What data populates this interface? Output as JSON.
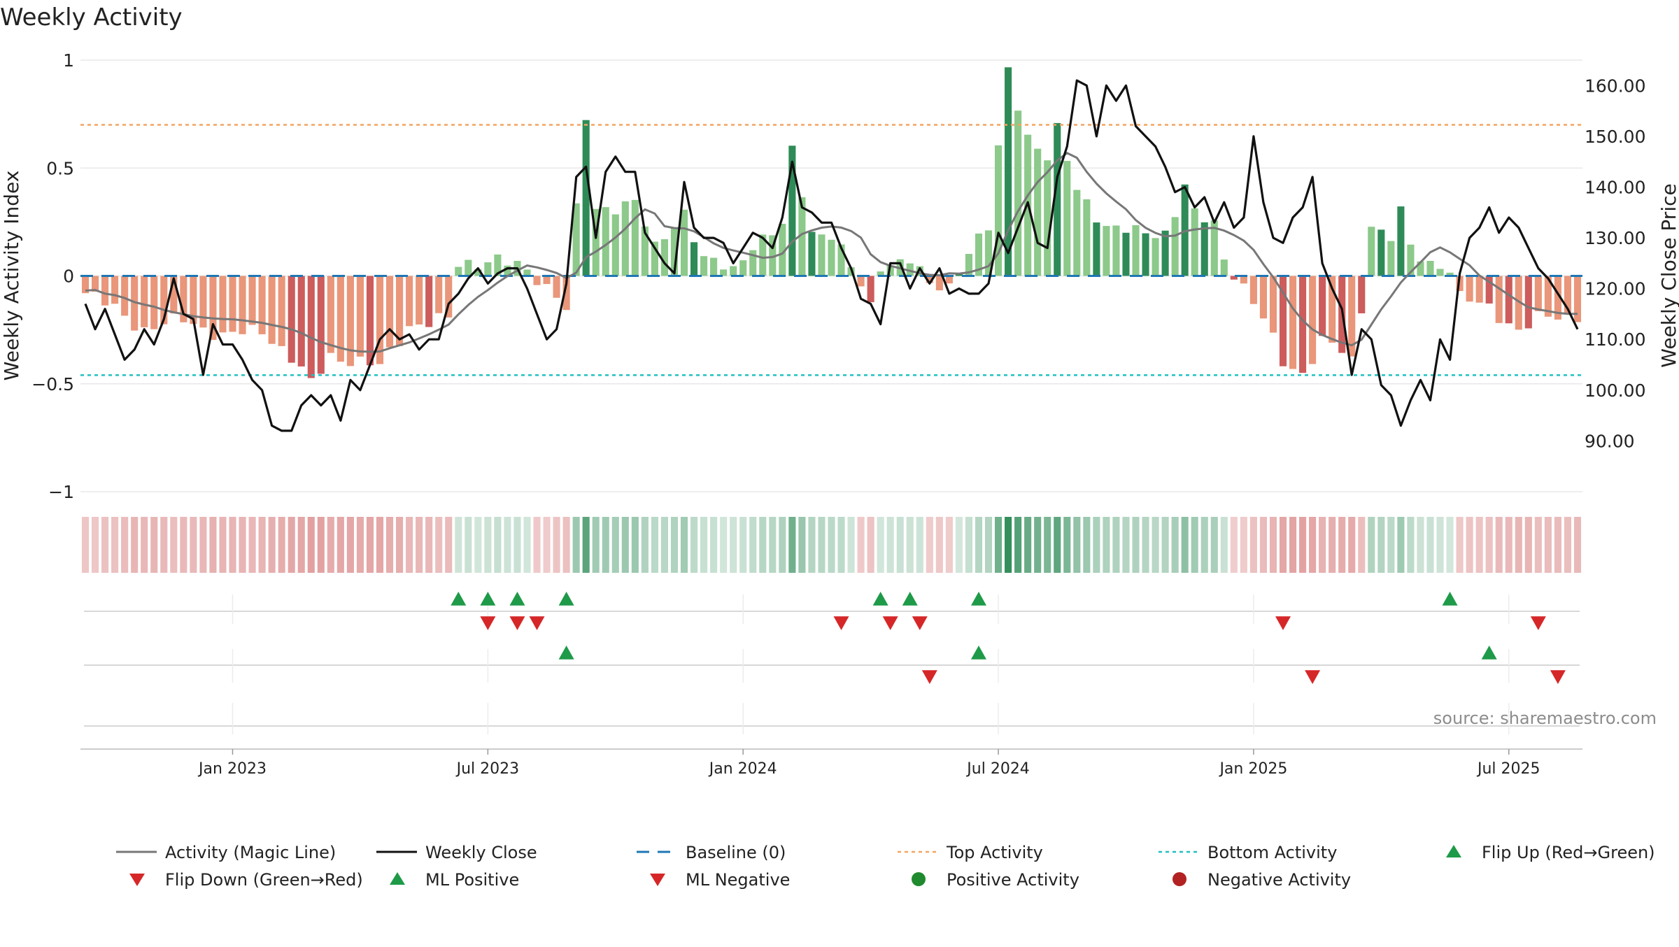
{
  "chart_data": {
    "type": "bar",
    "title": "Weekly Activity",
    "source": "source: sharemaestro.com",
    "ylabel": "Weekly Activity Index",
    "y2label": "Weekly Close Price",
    "ylim": [
      -1,
      1
    ],
    "y2lim": [
      80,
      165
    ],
    "yticks": [
      {
        "value": 1,
        "label": "1"
      },
      {
        "value": 0.5,
        "label": "0.5"
      },
      {
        "value": 0,
        "label": "0"
      },
      {
        "value": -0.5,
        "label": "−0.5"
      },
      {
        "value": -1,
        "label": "−1"
      }
    ],
    "y2ticks": [
      {
        "value": 160,
        "label": "160.00"
      },
      {
        "value": 150,
        "label": "150.00"
      },
      {
        "value": 140,
        "label": "140.00"
      },
      {
        "value": 130,
        "label": "130.00"
      },
      {
        "value": 120,
        "label": "120.00"
      },
      {
        "value": 110,
        "label": "110.00"
      },
      {
        "value": 100,
        "label": "100.00"
      },
      {
        "value": 90,
        "label": "90.00"
      }
    ],
    "x_weeks": 153,
    "xticks": [
      {
        "week": 15,
        "label": "Jan 2023"
      },
      {
        "week": 41,
        "label": "Jul 2023"
      },
      {
        "week": 67,
        "label": "Jan 2024"
      },
      {
        "week": 93,
        "label": "Jul 2024"
      },
      {
        "week": 119,
        "label": "Jan 2025"
      },
      {
        "week": 145,
        "label": "Jul 2025"
      }
    ],
    "top_activity": 0.7,
    "bottom_activity": -0.46,
    "baseline": 0,
    "colors": {
      "pos_dark": "#2e8b57",
      "pos_light": "#8cc98a",
      "neg_dark": "#cd5c5c",
      "neg_light": "#e9967a",
      "magic_line": "#777777",
      "close_line": "#111111",
      "baseline": "#1f77b4",
      "top": "#f4a460",
      "bottom": "#20c0c0",
      "flip_up": "#1e9a48",
      "flip_down": "#d62728"
    },
    "anchors": {
      "activity": [
        [
          0,
          -0.08
        ],
        [
          3,
          -0.15
        ],
        [
          6,
          -0.25
        ],
        [
          10,
          -0.2
        ],
        [
          14,
          -0.28
        ],
        [
          18,
          -0.25
        ],
        [
          21,
          -0.38
        ],
        [
          23,
          -0.5
        ],
        [
          25,
          -0.37
        ],
        [
          30,
          -0.42
        ],
        [
          33,
          -0.23
        ],
        [
          37,
          -0.2
        ],
        [
          38,
          0.05
        ],
        [
          42,
          0.08
        ],
        [
          45,
          0.02
        ],
        [
          48,
          -0.08
        ],
        [
          49,
          -0.15
        ],
        [
          50,
          0.3
        ],
        [
          51,
          0.73
        ],
        [
          52,
          0.3
        ],
        [
          56,
          0.35
        ],
        [
          58,
          0.12
        ],
        [
          61,
          0.3
        ],
        [
          63,
          0.08
        ],
        [
          66,
          0.02
        ],
        [
          68,
          0.15
        ],
        [
          71,
          0.23
        ],
        [
          72,
          0.57
        ],
        [
          74,
          0.2
        ],
        [
          76,
          0.2
        ],
        [
          77,
          0.12
        ],
        [
          79,
          -0.05
        ],
        [
          80,
          -0.15
        ],
        [
          81,
          0.05
        ],
        [
          84,
          0.08
        ],
        [
          86,
          -0.05
        ],
        [
          88,
          -0.05
        ],
        [
          90,
          0.12
        ],
        [
          92,
          0.22
        ],
        [
          94,
          0.95
        ],
        [
          96,
          0.65
        ],
        [
          98,
          0.55
        ],
        [
          99,
          0.67
        ],
        [
          101,
          0.4
        ],
        [
          104,
          0.23
        ],
        [
          107,
          0.2
        ],
        [
          110,
          0.2
        ],
        [
          111,
          0.3
        ],
        [
          112,
          0.42
        ],
        [
          113,
          0.28
        ],
        [
          115,
          0.24
        ],
        [
          116,
          0.08
        ],
        [
          117,
          0.02
        ],
        [
          118,
          -0.05
        ],
        [
          120,
          -0.2
        ],
        [
          122,
          -0.4
        ],
        [
          124,
          -0.45
        ],
        [
          126,
          -0.3
        ],
        [
          128,
          -0.35
        ],
        [
          129,
          -0.4
        ],
        [
          130,
          -0.15
        ],
        [
          131,
          0.25
        ],
        [
          132,
          0.2
        ],
        [
          133,
          0.18
        ],
        [
          134,
          0.3
        ],
        [
          135,
          0.12
        ],
        [
          137,
          0.06
        ],
        [
          139,
          0.04
        ],
        [
          140,
          -0.1
        ],
        [
          143,
          -0.15
        ],
        [
          146,
          -0.25
        ],
        [
          148,
          -0.2
        ],
        [
          152,
          -0.18
        ]
      ]
    },
    "dark_weeks": [
      21,
      22,
      23,
      24,
      29,
      35,
      51,
      62,
      72,
      74,
      80,
      89,
      94,
      99,
      103,
      106,
      108,
      110,
      112,
      114,
      117,
      122,
      124,
      126,
      128,
      130,
      132,
      134,
      143,
      145,
      147
    ],
    "close": [
      [
        0,
        117
      ],
      [
        1,
        112
      ],
      [
        2,
        116
      ],
      [
        3,
        111
      ],
      [
        4,
        106
      ],
      [
        5,
        108
      ],
      [
        6,
        112
      ],
      [
        7,
        109
      ],
      [
        8,
        114
      ],
      [
        9,
        122
      ],
      [
        10,
        115
      ],
      [
        11,
        114
      ],
      [
        12,
        103
      ],
      [
        13,
        113
      ],
      [
        14,
        109
      ],
      [
        15,
        109
      ],
      [
        16,
        106
      ],
      [
        17,
        102
      ],
      [
        18,
        100
      ],
      [
        19,
        93
      ],
      [
        20,
        92
      ],
      [
        21,
        92
      ],
      [
        22,
        97
      ],
      [
        23,
        99
      ],
      [
        24,
        97
      ],
      [
        25,
        99
      ],
      [
        26,
        94
      ],
      [
        27,
        102
      ],
      [
        28,
        100
      ],
      [
        29,
        105
      ],
      [
        30,
        110
      ],
      [
        31,
        112
      ],
      [
        32,
        110
      ],
      [
        33,
        111
      ],
      [
        34,
        108
      ],
      [
        35,
        110
      ],
      [
        36,
        110
      ],
      [
        37,
        117
      ],
      [
        38,
        119
      ],
      [
        39,
        122
      ],
      [
        40,
        124
      ],
      [
        41,
        121
      ],
      [
        42,
        123
      ],
      [
        43,
        124
      ],
      [
        44,
        124
      ],
      [
        45,
        120
      ],
      [
        46,
        115
      ],
      [
        47,
        110
      ],
      [
        48,
        112
      ],
      [
        49,
        121
      ],
      [
        50,
        142
      ],
      [
        51,
        144
      ],
      [
        52,
        130
      ],
      [
        53,
        143
      ],
      [
        54,
        146
      ],
      [
        55,
        143
      ],
      [
        56,
        143
      ],
      [
        57,
        131
      ],
      [
        58,
        128
      ],
      [
        59,
        125
      ],
      [
        60,
        123
      ],
      [
        61,
        141
      ],
      [
        62,
        132
      ],
      [
        63,
        130
      ],
      [
        64,
        130
      ],
      [
        65,
        129
      ],
      [
        66,
        125
      ],
      [
        67,
        128
      ],
      [
        68,
        131
      ],
      [
        69,
        130
      ],
      [
        70,
        128
      ],
      [
        71,
        134
      ],
      [
        72,
        145
      ],
      [
        73,
        136
      ],
      [
        74,
        135
      ],
      [
        75,
        133
      ],
      [
        76,
        133
      ],
      [
        77,
        128
      ],
      [
        78,
        124
      ],
      [
        79,
        118
      ],
      [
        80,
        117
      ],
      [
        81,
        113
      ],
      [
        82,
        125
      ],
      [
        83,
        125
      ],
      [
        84,
        120
      ],
      [
        85,
        124
      ],
      [
        86,
        121
      ],
      [
        87,
        124
      ],
      [
        88,
        119
      ],
      [
        89,
        120
      ],
      [
        90,
        119
      ],
      [
        91,
        119
      ],
      [
        92,
        121
      ],
      [
        93,
        131
      ],
      [
        94,
        127
      ],
      [
        95,
        132
      ],
      [
        96,
        137
      ],
      [
        97,
        129
      ],
      [
        98,
        128
      ],
      [
        99,
        142
      ],
      [
        100,
        148
      ],
      [
        101,
        161
      ],
      [
        102,
        160
      ],
      [
        103,
        150
      ],
      [
        104,
        160
      ],
      [
        105,
        157
      ],
      [
        106,
        160
      ],
      [
        107,
        152
      ],
      [
        108,
        150
      ],
      [
        109,
        148
      ],
      [
        110,
        144
      ],
      [
        111,
        139
      ],
      [
        112,
        140
      ],
      [
        113,
        136
      ],
      [
        114,
        138
      ],
      [
        115,
        133
      ],
      [
        116,
        137
      ],
      [
        117,
        132
      ],
      [
        118,
        134
      ],
      [
        119,
        150
      ],
      [
        120,
        137
      ],
      [
        121,
        130
      ],
      [
        122,
        129
      ],
      [
        123,
        134
      ],
      [
        124,
        136
      ],
      [
        125,
        142
      ],
      [
        126,
        125
      ],
      [
        127,
        120
      ],
      [
        128,
        116
      ],
      [
        129,
        103
      ],
      [
        130,
        112
      ],
      [
        131,
        110
      ],
      [
        132,
        101
      ],
      [
        133,
        99
      ],
      [
        134,
        93
      ],
      [
        135,
        98
      ],
      [
        136,
        102
      ],
      [
        137,
        98
      ],
      [
        138,
        110
      ],
      [
        139,
        106
      ],
      [
        140,
        123
      ],
      [
        141,
        130
      ],
      [
        142,
        132
      ],
      [
        143,
        136
      ],
      [
        144,
        131
      ],
      [
        145,
        134
      ],
      [
        146,
        132
      ],
      [
        147,
        128
      ],
      [
        148,
        124
      ],
      [
        149,
        122
      ],
      [
        150,
        119
      ],
      [
        151,
        116
      ],
      [
        152,
        112
      ]
    ],
    "flip_up_row1": [
      38,
      41,
      44,
      49,
      81,
      84,
      91,
      139
    ],
    "flip_down_row1": [
      41,
      44,
      46,
      77,
      82,
      85,
      122,
      148
    ],
    "flip_up_row2": [
      49,
      91,
      143
    ],
    "flip_down_row2": [
      86,
      125,
      150
    ],
    "legend": [
      {
        "key": "magic",
        "label": "Activity (Magic Line)"
      },
      {
        "key": "close",
        "label": "Weekly Close"
      },
      {
        "key": "baseline",
        "label": "Baseline (0)"
      },
      {
        "key": "top",
        "label": "Top Activity"
      },
      {
        "key": "bottom",
        "label": "Bottom Activity"
      },
      {
        "key": "flipup",
        "label": "Flip Up (Red→Green)"
      },
      {
        "key": "flipdown",
        "label": "Flip Down (Green→Red)"
      },
      {
        "key": "mlpos",
        "label": "ML Positive"
      },
      {
        "key": "mlneg",
        "label": "ML Negative"
      },
      {
        "key": "posact",
        "label": "Positive Activity"
      },
      {
        "key": "negact",
        "label": "Negative Activity"
      }
    ]
  }
}
